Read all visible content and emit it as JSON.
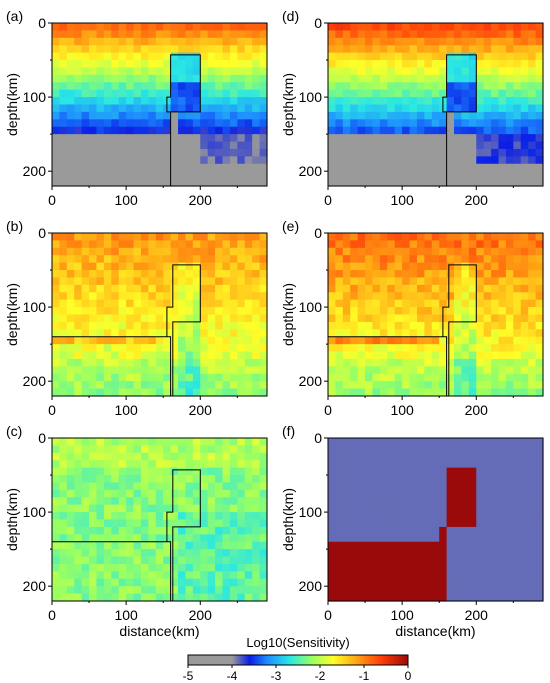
{
  "colorbar": {
    "label": "Log10(Sensitivity)",
    "ticks": [
      "-5",
      "-4",
      "-3",
      "-2",
      "-1",
      "0"
    ],
    "min": -5,
    "max": 0,
    "stops": [
      "#9a9a9a",
      "#9a9a9a",
      "#0a1ee6",
      "#1e8cff",
      "#28e6e6",
      "#96ff64",
      "#ffff28",
      "#ffaa14",
      "#ff3c0a",
      "#9b0a0a"
    ],
    "stop_values": [
      -5,
      -4,
      -3.6,
      -3.2,
      -2.7,
      -2.2,
      -1.7,
      -1.2,
      -0.6,
      0
    ]
  },
  "axes": {
    "y_ticks": [
      0,
      100,
      200
    ],
    "x_ticks": [
      0,
      100,
      200
    ],
    "ylim": [
      0,
      220
    ],
    "xlim": [
      0,
      290
    ],
    "ylabel": "depth(km)",
    "xlabel": "distance(km)"
  },
  "chart_data": [
    {
      "type": "heatmap",
      "label": "(a)",
      "title": "",
      "xlabel": "",
      "ylabel": "depth(km)",
      "xlim": [
        0,
        290
      ],
      "ylim": [
        0,
        220
      ],
      "y_reversed": true,
      "outline": "square",
      "desc": "sensitivity decreasing with depth (-0.8 at surface to about -3.5 at 140–160 km), gray (< -4) below 160 km"
    },
    {
      "type": "heatmap",
      "label": "(d)",
      "title": "",
      "xlabel": "",
      "ylabel": "depth(km)",
      "xlim": [
        0,
        290
      ],
      "ylim": [
        0,
        220
      ],
      "y_reversed": true,
      "outline": "square",
      "desc": "similar to (a) with stronger surface sensitivity"
    },
    {
      "type": "heatmap",
      "label": "(b)",
      "title": "",
      "xlabel": "",
      "ylabel": "depth(km)",
      "xlim": [
        0,
        290
      ],
      "ylim": [
        0,
        220
      ],
      "y_reversed": true,
      "outline": "step",
      "desc": "sensitivity between about -1 and -2 everywhere"
    },
    {
      "type": "heatmap",
      "label": "(e)",
      "title": "",
      "xlabel": "",
      "ylabel": "depth(km)",
      "xlim": [
        0,
        290
      ],
      "ylim": [
        0,
        220
      ],
      "y_reversed": true,
      "outline": "step",
      "desc": "sensitivity between about -0.8 and -2"
    },
    {
      "type": "heatmap",
      "label": "(c)",
      "title": "",
      "xlabel": "distance(km)",
      "ylabel": "depth(km)",
      "xlim": [
        0,
        290
      ],
      "ylim": [
        0,
        220
      ],
      "y_reversed": true,
      "outline": "step",
      "desc": "nearly uniform sensitivity around -2.3"
    },
    {
      "type": "heatmap",
      "label": "(f)",
      "title": "",
      "xlabel": "distance(km)",
      "ylabel": "depth(km)",
      "xlim": [
        0,
        290
      ],
      "ylim": [
        0,
        220
      ],
      "y_reversed": true,
      "outline": "none",
      "desc": "binary model: background -3.8, anomaly block 0"
    }
  ],
  "outline_shapes": {
    "square": [
      [
        160,
        220
      ],
      [
        160,
        120
      ],
      [
        155,
        120
      ],
      [
        155,
        100
      ],
      [
        160,
        100
      ],
      [
        160,
        43
      ],
      [
        200,
        43
      ],
      [
        200,
        120
      ],
      [
        160,
        120
      ]
    ],
    "step": [
      [
        0,
        140
      ],
      [
        155,
        140
      ],
      [
        155,
        100
      ],
      [
        163,
        100
      ],
      [
        163,
        43
      ],
      [
        200,
        43
      ],
      [
        200,
        120
      ],
      [
        163,
        120
      ],
      [
        163,
        220
      ],
      [
        160,
        220
      ],
      [
        160,
        140
      ],
      [
        155,
        140
      ]
    ]
  },
  "anomaly_f": [
    [
      0,
      140
    ],
    [
      150,
      140
    ],
    [
      150,
      120
    ],
    [
      160,
      120
    ],
    [
      160,
      43
    ],
    [
      200,
      43
    ],
    [
      200,
      120
    ],
    [
      160,
      120
    ],
    [
      160,
      220
    ],
    [
      0,
      220
    ]
  ]
}
